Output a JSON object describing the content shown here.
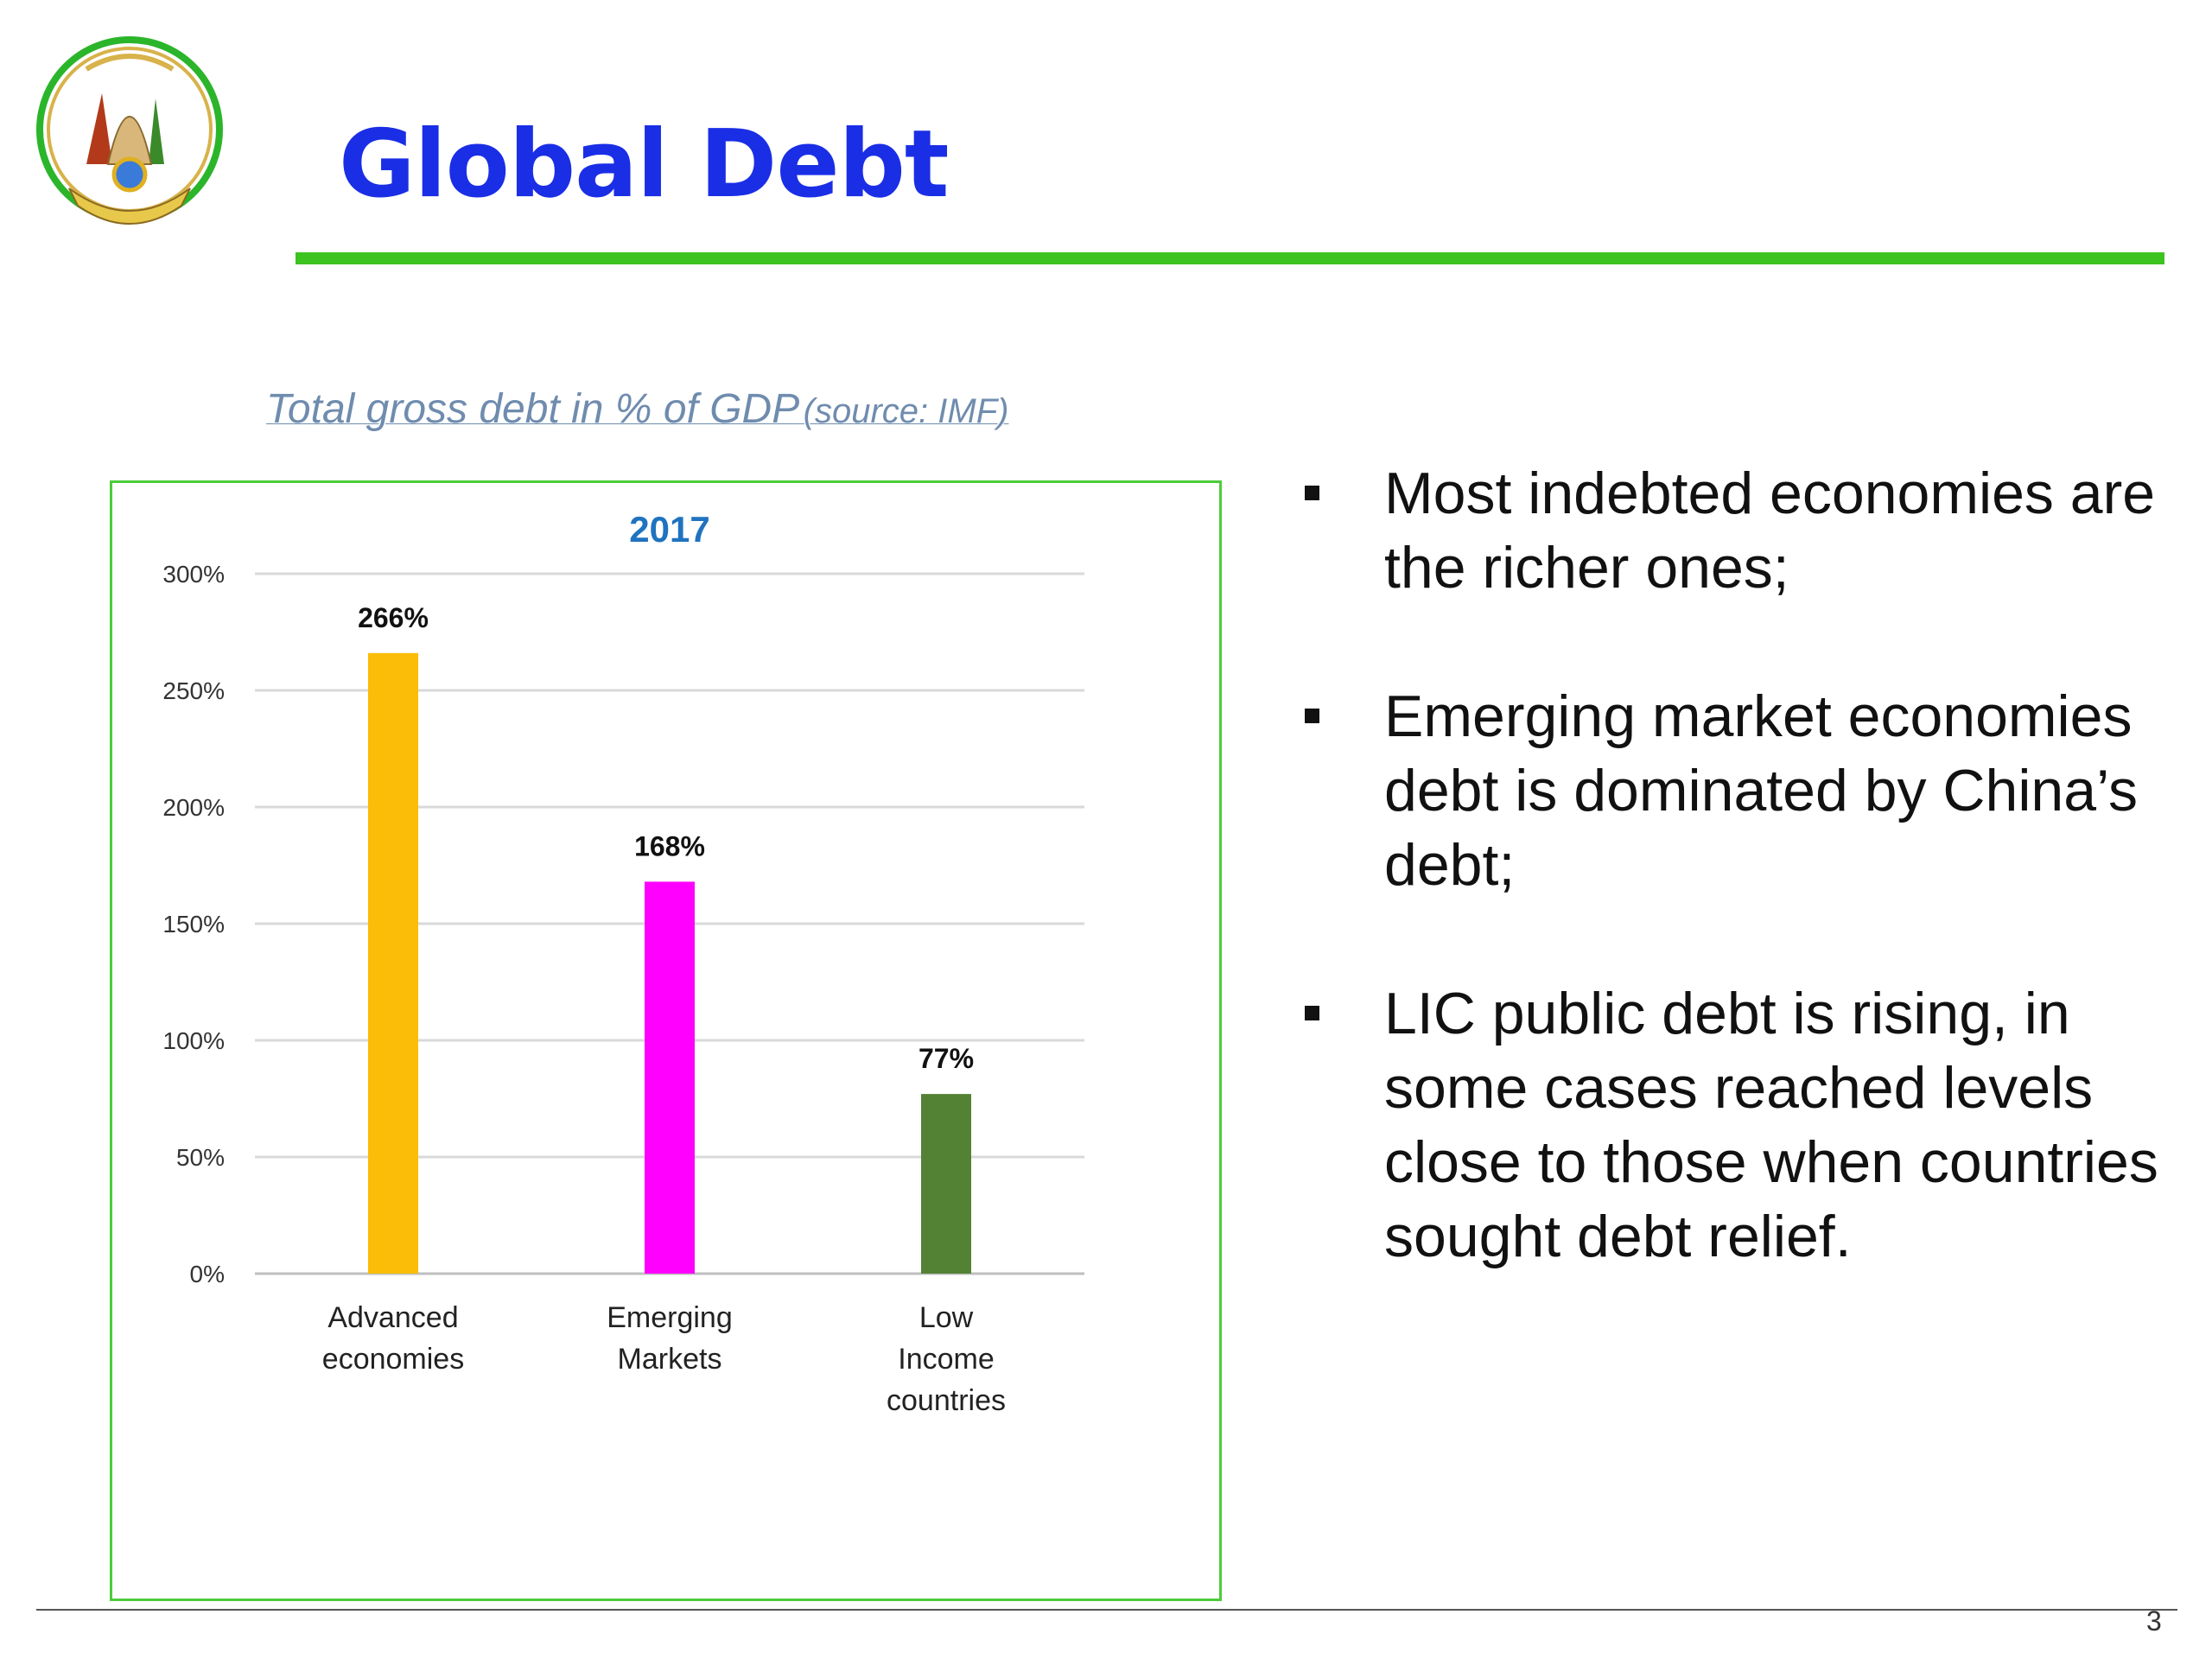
{
  "slide": {
    "title": "Global Debt",
    "caption_main": "Total gross debt in % of GDP",
    "caption_source": "(source: IMF)",
    "page_number": "3"
  },
  "bullets": [
    "Most indebted economies are the richer ones;",
    "Emerging market economies debt is dominated by China’s debt;",
    "LIC public debt is rising, in some cases reached levels close to those when countries sought debt relief."
  ],
  "colors": {
    "title": "#1a2ee6",
    "title_rule": "#3cc31f",
    "chart_border": "#4dcc3b",
    "chart_title": "#1f73bf"
  },
  "chart_data": {
    "type": "bar",
    "title": "2017",
    "categories": [
      [
        "Advanced",
        "economies"
      ],
      [
        "Emerging",
        "Markets"
      ],
      [
        "Low",
        "Income",
        "countries"
      ]
    ],
    "values": [
      266,
      168,
      77
    ],
    "data_labels": [
      "266%",
      "168%",
      "77%"
    ],
    "bar_colors": [
      "#fbbd08",
      "#ff00ff",
      "#548235"
    ],
    "ylim": [
      0,
      300
    ],
    "yticks": [
      0,
      50,
      100,
      150,
      200,
      250,
      300
    ],
    "ytick_labels": [
      "0%",
      "50%",
      "100%",
      "150%",
      "200%",
      "250%",
      "300%"
    ],
    "grid": true,
    "legend": "none"
  }
}
